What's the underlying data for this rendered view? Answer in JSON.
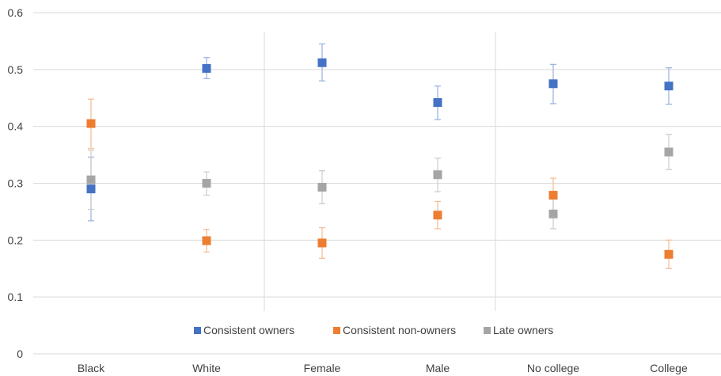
{
  "chart_data": {
    "type": "scatter",
    "title": "",
    "xlabel": "",
    "ylabel": "",
    "ylim": [
      0,
      0.6
    ],
    "yticks": [
      "0",
      "0.1",
      "0.2",
      "0.3",
      "0.4",
      "0.5",
      "0.6"
    ],
    "grid": true,
    "legend_position": "bottom",
    "categories": [
      "Black",
      "White",
      "Female",
      "Male",
      "No college",
      "College"
    ],
    "series": [
      {
        "name": "Consistent owners",
        "color": "#4472C4",
        "values": [
          0.29,
          0.502,
          0.512,
          0.442,
          0.475,
          0.471
        ],
        "err_low": [
          0.234,
          0.484,
          0.48,
          0.412,
          0.44,
          0.439
        ],
        "err_high": [
          0.346,
          0.521,
          0.545,
          0.471,
          0.509,
          0.503
        ]
      },
      {
        "name": "Consistent non-owners",
        "color": "#ED7D31",
        "values": [
          0.405,
          0.199,
          0.195,
          0.244,
          0.279,
          0.175
        ],
        "err_low": [
          0.361,
          0.179,
          0.168,
          0.22,
          0.249,
          0.15
        ],
        "err_high": [
          0.448,
          0.219,
          0.222,
          0.268,
          0.309,
          0.2
        ]
      },
      {
        "name": "Late owners",
        "color": "#A5A5A5",
        "values": [
          0.306,
          0.3,
          0.293,
          0.315,
          0.246,
          0.355
        ],
        "err_low": [
          0.254,
          0.279,
          0.264,
          0.285,
          0.22,
          0.324
        ],
        "err_high": [
          0.358,
          0.32,
          0.322,
          0.344,
          0.272,
          0.386
        ]
      }
    ]
  }
}
